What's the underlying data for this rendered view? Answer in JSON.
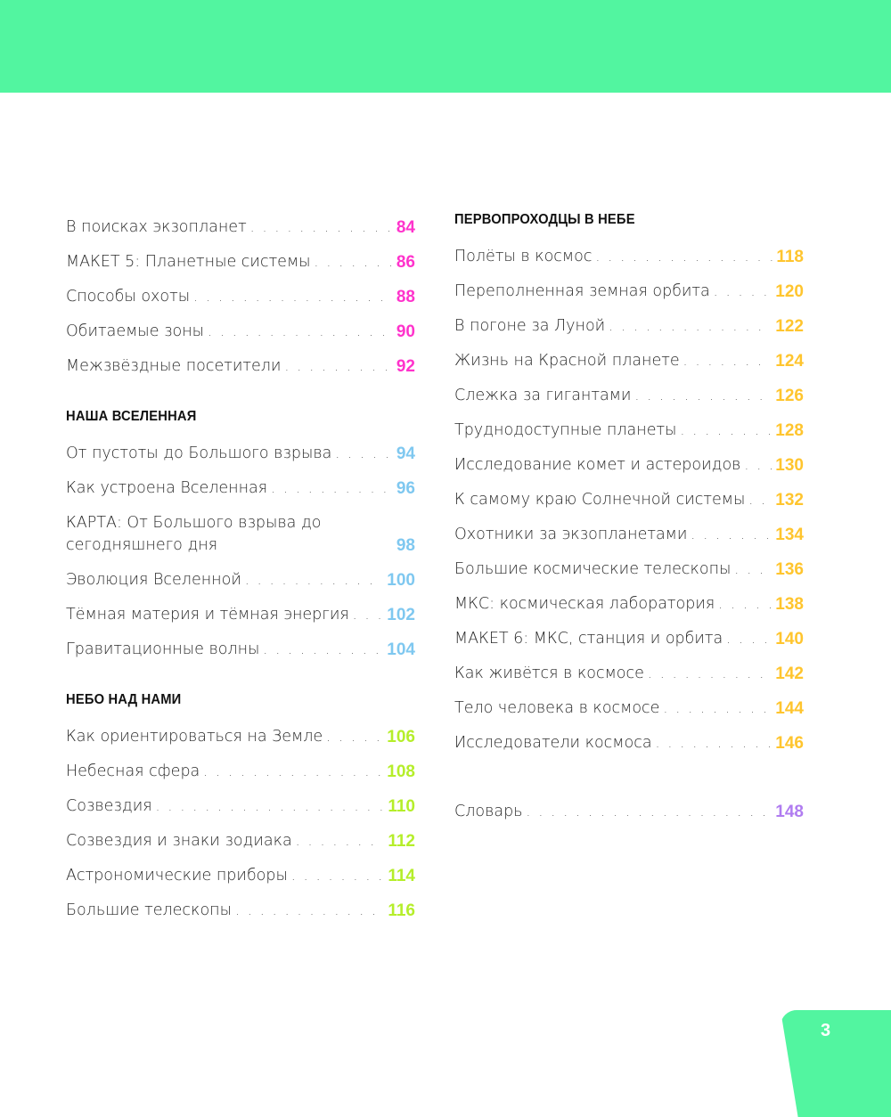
{
  "colors": {
    "top_bar": "#52f5a0",
    "pink": "#ff33cc",
    "blue": "#7fc8f0",
    "lime": "#b5ee2a",
    "yellow": "#ffc52e",
    "purple": "#b07cf0"
  },
  "left": [
    {
      "type": "item",
      "title": "В поисках экзопланет",
      "page": "84",
      "color": "pink"
    },
    {
      "type": "item",
      "title": "МАКЕТ 5: Планетные системы",
      "page": "86",
      "color": "pink"
    },
    {
      "type": "item",
      "title": "Способы охоты",
      "page": "88",
      "color": "pink"
    },
    {
      "type": "item",
      "title": "Обитаемые зоны",
      "page": "90",
      "color": "pink"
    },
    {
      "type": "item",
      "title": "Межзвёздные посетители",
      "page": "92",
      "color": "pink"
    },
    {
      "type": "head",
      "title": "НАША ВСЕЛЕННАЯ"
    },
    {
      "type": "item",
      "title": "От пустоты до Большого взрыва",
      "page": "94",
      "color": "blue"
    },
    {
      "type": "item",
      "title": "Как устроена Вселенная",
      "page": "96",
      "color": "blue"
    },
    {
      "type": "item",
      "title": "КАРТА: От Большого взрыва до сегодняшнего дня",
      "page": "98",
      "color": "blue",
      "two": true
    },
    {
      "type": "item",
      "title": "Эволюция Вселенной",
      "page": "100",
      "color": "blue"
    },
    {
      "type": "item",
      "title": "Тёмная материя и тёмная энергия",
      "page": "102",
      "color": "blue"
    },
    {
      "type": "item",
      "title": "Гравитационные волны",
      "page": "104",
      "color": "blue"
    },
    {
      "type": "head",
      "title": "НЕБО НАД НАМИ"
    },
    {
      "type": "item",
      "title": "Как ориентироваться на Земле",
      "page": "106",
      "color": "lime"
    },
    {
      "type": "item",
      "title": "Небесная сфера",
      "page": "108",
      "color": "lime"
    },
    {
      "type": "item",
      "title": "Созвездия",
      "page": "110",
      "color": "lime"
    },
    {
      "type": "item",
      "title": "Созвездия и знаки зодиака",
      "page": "112",
      "color": "lime"
    },
    {
      "type": "item",
      "title": "Астрономические приборы",
      "page": "114",
      "color": "lime"
    },
    {
      "type": "item",
      "title": "Большие телескопы",
      "page": "116",
      "color": "lime"
    }
  ],
  "right": [
    {
      "type": "head",
      "title": "ПЕРВОПРОХОДЦЫ В НЕБЕ"
    },
    {
      "type": "item",
      "title": "Полёты в космос",
      "page": "118",
      "color": "yellow"
    },
    {
      "type": "item",
      "title": "Переполненная земная орбита",
      "page": "120",
      "color": "yellow"
    },
    {
      "type": "item",
      "title": "В погоне за Луной",
      "page": "122",
      "color": "yellow"
    },
    {
      "type": "item",
      "title": "Жизнь на Красной планете",
      "page": "124",
      "color": "yellow"
    },
    {
      "type": "item",
      "title": "Слежка за гигантами",
      "page": "126",
      "color": "yellow"
    },
    {
      "type": "item",
      "title": "Труднодоступные планеты",
      "page": "128",
      "color": "yellow"
    },
    {
      "type": "item",
      "title": "Исследование комет и астероидов",
      "page": "130",
      "color": "yellow"
    },
    {
      "type": "item",
      "title": "К самому краю Солнечной системы",
      "page": "132",
      "color": "yellow"
    },
    {
      "type": "item",
      "title": "Охотники за экзопланетами",
      "page": "134",
      "color": "yellow"
    },
    {
      "type": "item",
      "title": "Большие космические телескопы",
      "page": "136",
      "color": "yellow"
    },
    {
      "type": "item",
      "title": "МКС: космическая лаборатория",
      "page": "138",
      "color": "yellow"
    },
    {
      "type": "item",
      "title": "МАКЕТ 6: МКС, станция и орбита",
      "page": "140",
      "color": "yellow"
    },
    {
      "type": "item",
      "title": "Как живётся в космосе",
      "page": "142",
      "color": "yellow"
    },
    {
      "type": "item",
      "title": "Тело человека в космосе",
      "page": "144",
      "color": "yellow"
    },
    {
      "type": "item",
      "title": "Исследователи космоса",
      "page": "146",
      "color": "yellow"
    },
    {
      "type": "gap"
    },
    {
      "type": "item",
      "title": "Словарь",
      "page": "148",
      "color": "purple"
    }
  ],
  "page_number": "3"
}
